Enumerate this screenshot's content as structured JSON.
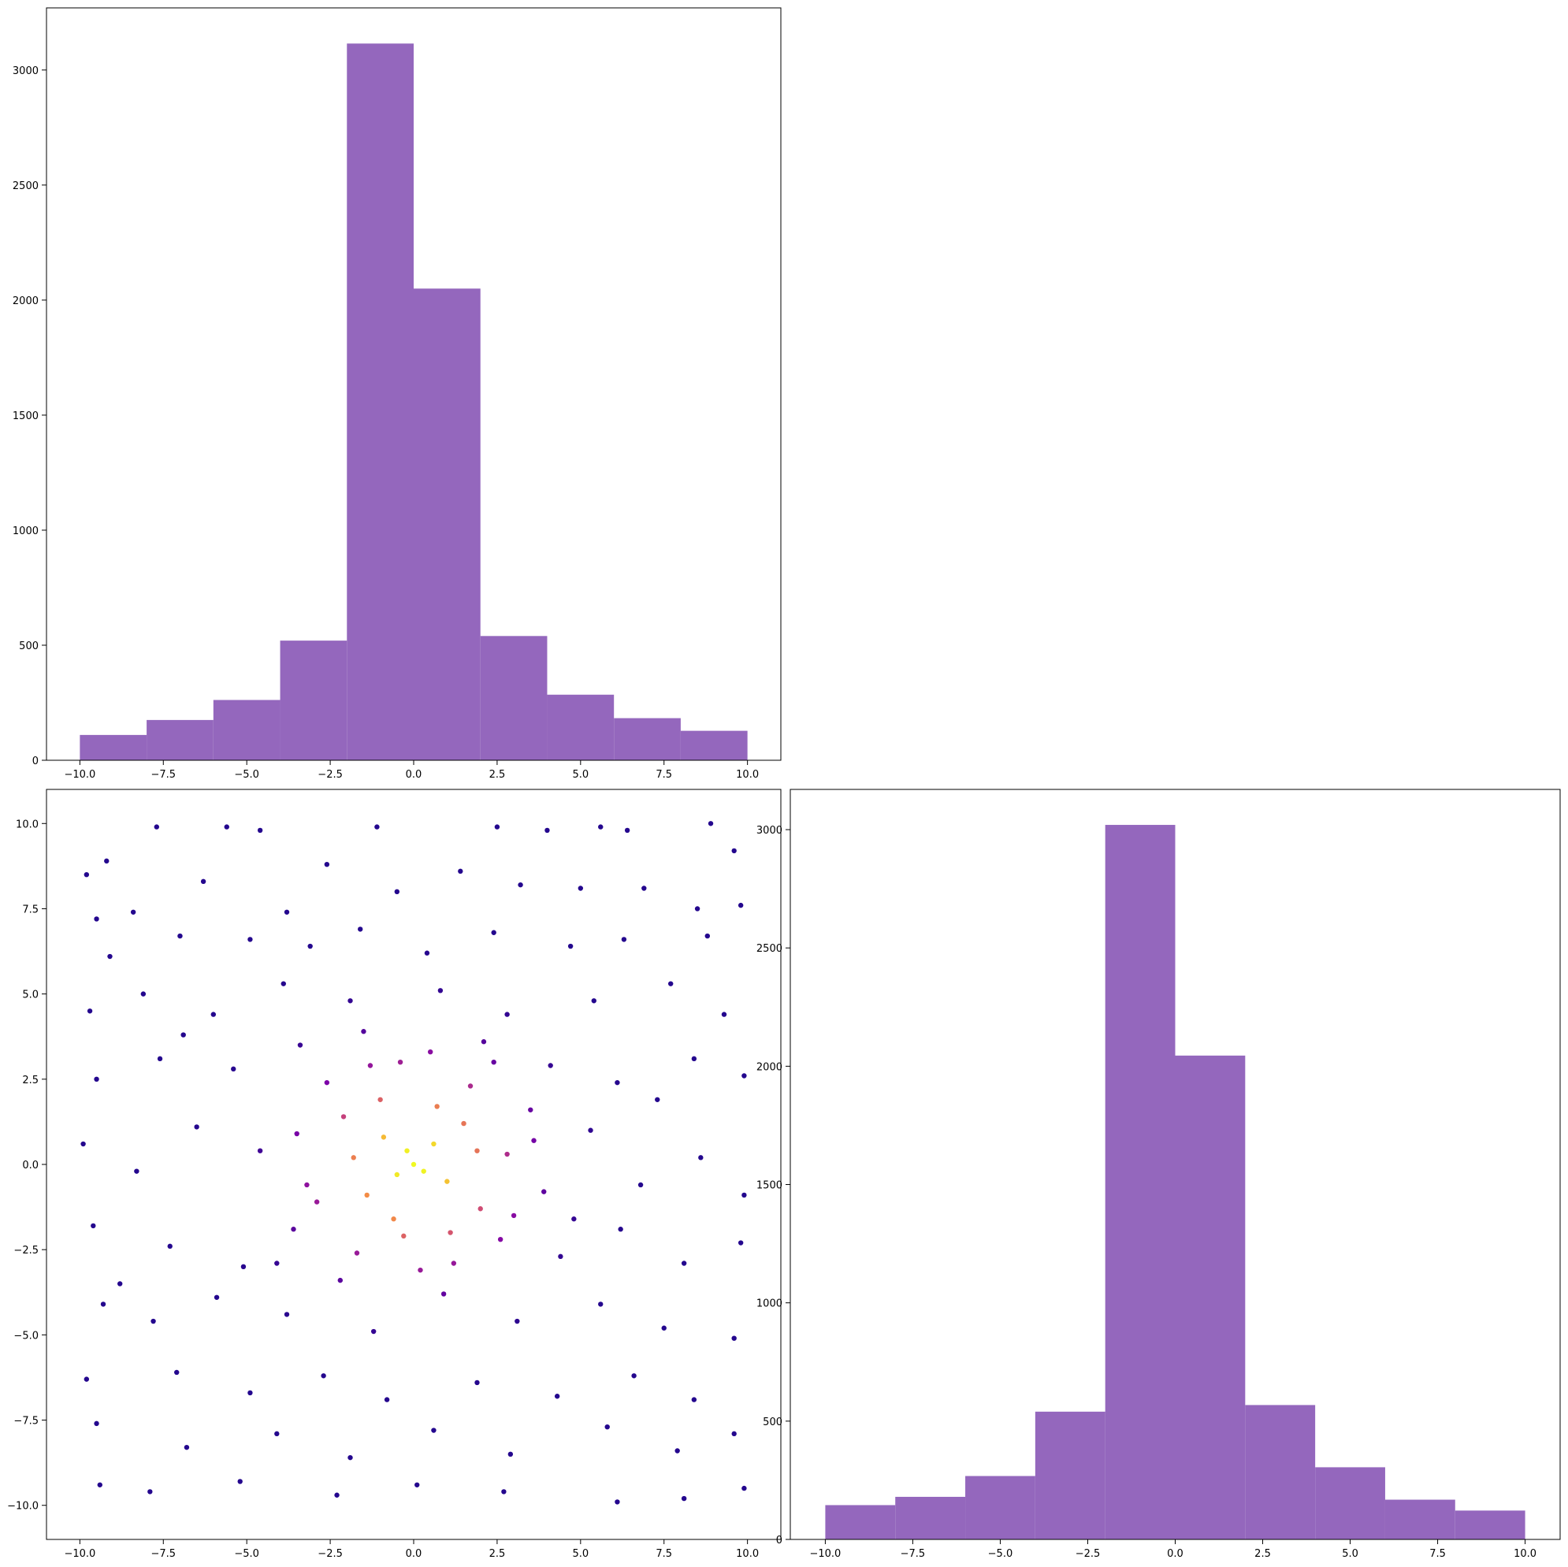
{
  "colors": {
    "hist_fill": "#9467bd",
    "scatter_colormap": "plasma",
    "axes_edge": "#000000",
    "background": "#ffffff"
  },
  "chart_data": [
    {
      "id": "hist-top",
      "type": "bar",
      "subtype": "histogram",
      "bin_edges": [
        -10,
        -8,
        -6,
        -4,
        -2,
        0,
        2,
        4,
        6,
        8,
        10
      ],
      "values": [
        110,
        175,
        262,
        520,
        3115,
        2050,
        540,
        285,
        183,
        128
      ],
      "xlim": [
        -11,
        11
      ],
      "ylim": [
        0,
        3270
      ],
      "xticks": [
        -10,
        -7.5,
        -5,
        -2.5,
        0,
        2.5,
        5,
        7.5,
        10
      ],
      "xtick_labels": [
        "−10.0",
        "−7.5",
        "−5.0",
        "−2.5",
        "0.0",
        "2.5",
        "5.0",
        "7.5",
        "10.0"
      ],
      "yticks": [
        0,
        500,
        1000,
        1500,
        2000,
        2500,
        3000
      ],
      "ytick_labels": [
        "0",
        "500",
        "1000",
        "1500",
        "2000",
        "2500",
        "3000"
      ],
      "title": "",
      "xlabel": "",
      "ylabel": "",
      "grid": false
    },
    {
      "id": "scatter",
      "type": "scatter",
      "xlim": [
        -11,
        11
      ],
      "ylim": [
        -11,
        11
      ],
      "xticks": [
        -10,
        -7.5,
        -5,
        -2.5,
        0,
        2.5,
        5,
        7.5,
        10
      ],
      "xtick_labels": [
        "−10.0",
        "−7.5",
        "−5.0",
        "−2.5",
        "0.0",
        "2.5",
        "5.0",
        "7.5",
        "10.0"
      ],
      "yticks": [
        -10,
        -7.5,
        -5,
        -2.5,
        0,
        2.5,
        5,
        7.5,
        10
      ],
      "ytick_labels": [
        "−10.0",
        "−7.5",
        "−5.0",
        "−2.5",
        "0.0",
        "2.5",
        "5.0",
        "7.5",
        "10.0"
      ],
      "color_by": "point density (plasma colormap)",
      "points": [
        [
          -9.8,
          8.5
        ],
        [
          -9.2,
          8.9
        ],
        [
          -7.7,
          9.9
        ],
        [
          -5.6,
          9.9
        ],
        [
          -4.6,
          9.8
        ],
        [
          -1.1,
          9.9
        ],
        [
          2.5,
          9.9
        ],
        [
          4.0,
          9.8
        ],
        [
          5.6,
          9.9
        ],
        [
          6.4,
          9.8
        ],
        [
          8.9,
          10.0
        ],
        [
          9.6,
          9.2
        ],
        [
          -9.5,
          7.2
        ],
        [
          -8.4,
          7.4
        ],
        [
          -6.3,
          8.3
        ],
        [
          -3.8,
          7.4
        ],
        [
          -2.6,
          8.8
        ],
        [
          -0.5,
          8.0
        ],
        [
          1.4,
          8.6
        ],
        [
          3.2,
          8.2
        ],
        [
          5.0,
          8.1
        ],
        [
          6.9,
          8.1
        ],
        [
          8.5,
          7.5
        ],
        [
          9.8,
          7.6
        ],
        [
          -9.1,
          6.1
        ],
        [
          -7.0,
          6.7
        ],
        [
          -4.9,
          6.6
        ],
        [
          -3.1,
          6.4
        ],
        [
          -1.6,
          6.9
        ],
        [
          0.4,
          6.2
        ],
        [
          2.4,
          6.8
        ],
        [
          4.7,
          6.4
        ],
        [
          6.3,
          6.6
        ],
        [
          8.8,
          6.7
        ],
        [
          -9.7,
          4.5
        ],
        [
          -8.1,
          5.0
        ],
        [
          -6.0,
          4.4
        ],
        [
          -3.9,
          5.3
        ],
        [
          -1.9,
          4.8
        ],
        [
          0.8,
          5.1
        ],
        [
          2.8,
          4.4
        ],
        [
          5.4,
          4.8
        ],
        [
          7.7,
          5.3
        ],
        [
          9.3,
          4.4
        ],
        [
          -9.5,
          2.5
        ],
        [
          -7.6,
          3.1
        ],
        [
          -5.4,
          2.8
        ],
        [
          -3.4,
          3.5
        ],
        [
          -1.5,
          3.9
        ],
        [
          0.5,
          3.3
        ],
        [
          2.1,
          3.6
        ],
        [
          4.1,
          2.9
        ],
        [
          6.1,
          2.4
        ],
        [
          8.4,
          3.1
        ],
        [
          9.9,
          2.6
        ],
        [
          -9.9,
          0.6
        ],
        [
          -8.3,
          -0.2
        ],
        [
          -6.5,
          1.1
        ],
        [
          -4.6,
          0.4
        ],
        [
          -3.2,
          -0.6
        ],
        [
          -2.1,
          1.4
        ],
        [
          -1.4,
          -0.9
        ],
        [
          -0.9,
          0.8
        ],
        [
          -0.5,
          -0.3
        ],
        [
          -0.2,
          0.4
        ],
        [
          0.0,
          0.0
        ],
        [
          0.3,
          -0.2
        ],
        [
          0.6,
          0.6
        ],
        [
          1.0,
          -0.5
        ],
        [
          1.5,
          1.2
        ],
        [
          2.0,
          -1.3
        ],
        [
          2.8,
          0.3
        ],
        [
          3.9,
          -0.8
        ],
        [
          5.3,
          1.0
        ],
        [
          6.8,
          -0.6
        ],
        [
          8.6,
          0.2
        ],
        [
          9.9,
          -0.9
        ],
        [
          -9.6,
          -1.8
        ],
        [
          -7.3,
          -2.4
        ],
        [
          -5.1,
          -3.0
        ],
        [
          -3.6,
          -1.9
        ],
        [
          -1.7,
          -2.6
        ],
        [
          -0.3,
          -2.1
        ],
        [
          1.2,
          -2.9
        ],
        [
          2.6,
          -2.2
        ],
        [
          4.4,
          -2.7
        ],
        [
          6.2,
          -1.9
        ],
        [
          8.1,
          -2.9
        ],
        [
          9.8,
          -2.3
        ],
        [
          -9.3,
          -4.1
        ],
        [
          -7.8,
          -4.6
        ],
        [
          -5.9,
          -3.9
        ],
        [
          -3.8,
          -4.4
        ],
        [
          -1.2,
          -4.9
        ],
        [
          0.9,
          -3.8
        ],
        [
          3.1,
          -4.6
        ],
        [
          5.6,
          -4.1
        ],
        [
          7.5,
          -4.8
        ],
        [
          9.6,
          -5.1
        ],
        [
          -9.8,
          -6.3
        ],
        [
          -7.1,
          -6.1
        ],
        [
          -4.9,
          -6.7
        ],
        [
          -2.7,
          -6.2
        ],
        [
          -0.8,
          -6.9
        ],
        [
          1.9,
          -6.4
        ],
        [
          4.3,
          -6.8
        ],
        [
          6.6,
          -6.2
        ],
        [
          8.4,
          -6.9
        ],
        [
          -9.5,
          -7.6
        ],
        [
          -6.8,
          -8.3
        ],
        [
          -4.1,
          -7.9
        ],
        [
          -1.9,
          -8.6
        ],
        [
          0.6,
          -7.8
        ],
        [
          2.9,
          -8.5
        ],
        [
          5.8,
          -7.7
        ],
        [
          7.9,
          -8.4
        ],
        [
          9.6,
          -7.9
        ],
        [
          -9.4,
          -9.4
        ],
        [
          -7.9,
          -9.6
        ],
        [
          -5.2,
          -9.3
        ],
        [
          -2.3,
          -9.7
        ],
        [
          0.1,
          -9.4
        ],
        [
          2.7,
          -9.6
        ],
        [
          6.1,
          -9.9
        ],
        [
          8.1,
          -9.8
        ],
        [
          9.9,
          -9.5
        ],
        [
          -8.8,
          -3.5
        ],
        [
          -6.9,
          3.8
        ],
        [
          -4.1,
          -2.9
        ],
        [
          -2.6,
          2.4
        ],
        [
          -1.0,
          1.9
        ],
        [
          1.7,
          2.3
        ],
        [
          3.5,
          1.6
        ],
        [
          4.8,
          -1.6
        ],
        [
          7.3,
          1.9
        ],
        [
          -1.8,
          0.2
        ],
        [
          1.9,
          0.4
        ],
        [
          -0.6,
          -1.6
        ],
        [
          0.7,
          1.7
        ],
        [
          -2.9,
          -1.1
        ],
        [
          3.0,
          -1.5
        ],
        [
          -1.3,
          2.9
        ],
        [
          1.1,
          -2.0
        ],
        [
          -2.2,
          -3.4
        ],
        [
          2.4,
          3.0
        ],
        [
          -3.5,
          0.9
        ],
        [
          3.6,
          0.7
        ],
        [
          0.2,
          -3.1
        ],
        [
          -0.4,
          3.0
        ]
      ],
      "title": "",
      "xlabel": "",
      "ylabel": "",
      "grid": false
    },
    {
      "id": "hist-right",
      "type": "bar",
      "subtype": "histogram",
      "bin_edges": [
        -10,
        -8,
        -6,
        -4,
        -2,
        0,
        2,
        4,
        6,
        8,
        10
      ],
      "values": [
        145,
        180,
        268,
        540,
        3020,
        2045,
        568,
        305,
        168,
        122
      ],
      "xlim": [
        -11,
        11
      ],
      "ylim": [
        0,
        3170
      ],
      "xticks": [
        -10,
        -7.5,
        -5,
        -2.5,
        0,
        2.5,
        5,
        7.5,
        10
      ],
      "xtick_labels": [
        "−10.0",
        "−7.5",
        "−5.0",
        "−2.5",
        "0.0",
        "2.5",
        "5.0",
        "7.5",
        "10.0"
      ],
      "yticks": [
        0,
        500,
        1000,
        1500,
        2000,
        2500,
        3000
      ],
      "ytick_labels": [
        "0",
        "500",
        "1000",
        "1500",
        "2000",
        "2500",
        "3000"
      ],
      "title": "",
      "xlabel": "",
      "ylabel": "",
      "grid": false
    }
  ]
}
